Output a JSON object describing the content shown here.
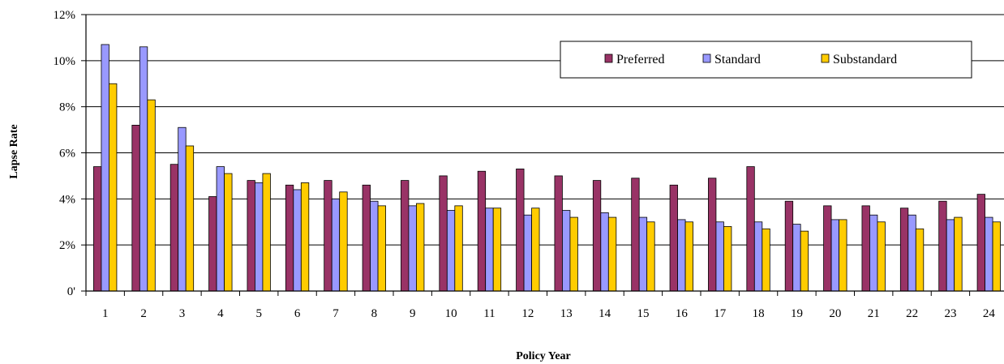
{
  "chart_data": {
    "type": "bar",
    "title": "",
    "xlabel": "Policy Year",
    "ylabel": "Lapse Rate",
    "ylim": [
      0,
      12
    ],
    "y_ticks": [
      0,
      2,
      4,
      6,
      8,
      10,
      12
    ],
    "y_tick_labels": [
      "0'",
      "2%",
      "4%",
      "6%",
      "8%",
      "10%",
      "12%"
    ],
    "grid": true,
    "legend_position": "top-right",
    "categories": [
      "1",
      "2",
      "3",
      "4",
      "5",
      "6",
      "7",
      "8",
      "9",
      "10",
      "11",
      "12",
      "13",
      "14",
      "15",
      "16",
      "17",
      "18",
      "19",
      "20",
      "21",
      "22",
      "23",
      "24"
    ],
    "series": [
      {
        "name": "Preferred",
        "color": "#993366",
        "values": [
          5.4,
          7.2,
          5.5,
          4.1,
          4.8,
          4.6,
          4.8,
          4.6,
          4.8,
          5.0,
          5.2,
          5.3,
          5.0,
          4.8,
          4.9,
          4.6,
          4.9,
          5.4,
          3.9,
          3.7,
          3.7,
          3.6,
          3.9,
          4.2
        ]
      },
      {
        "name": "Standard",
        "color": "#9999FF",
        "values": [
          10.7,
          10.6,
          7.1,
          5.4,
          4.7,
          4.4,
          4.0,
          3.9,
          3.7,
          3.5,
          3.6,
          3.3,
          3.5,
          3.4,
          3.2,
          3.1,
          3.0,
          3.0,
          2.9,
          3.1,
          3.3,
          3.3,
          3.1,
          3.2
        ]
      },
      {
        "name": "Substandard",
        "color": "#FFCC00",
        "values": [
          9.0,
          8.3,
          6.3,
          5.1,
          5.1,
          4.7,
          4.3,
          3.7,
          3.8,
          3.7,
          3.6,
          3.6,
          3.2,
          3.2,
          3.0,
          3.0,
          2.8,
          2.7,
          2.6,
          3.1,
          3.0,
          2.7,
          3.2,
          3.0
        ]
      }
    ]
  }
}
